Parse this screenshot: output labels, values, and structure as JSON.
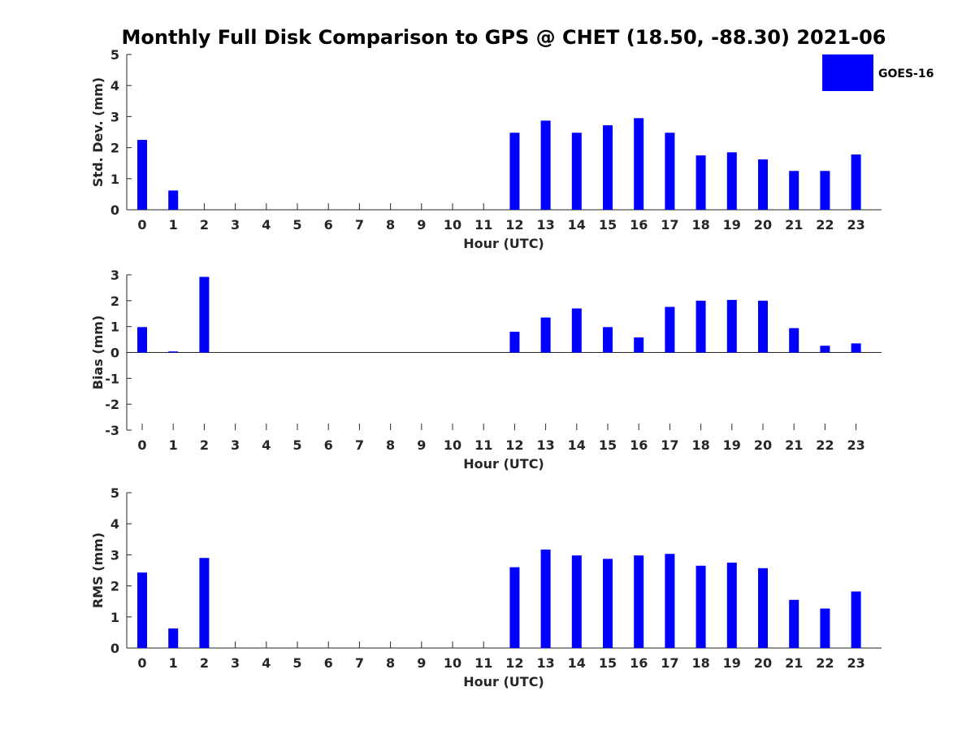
{
  "chart_data": {
    "title": "Monthly Full Disk Comparison to GPS @ CHET (18.50, -88.30) 2021-06",
    "legend": {
      "position": "top-right",
      "entries": [
        "GOES-16"
      ]
    },
    "bar_color": "#0000ff",
    "panels": [
      {
        "type": "bar",
        "xlabel": "Hour (UTC)",
        "ylabel": "Std. Dev. (mm)",
        "ylim": [
          0,
          5
        ],
        "yticks": [
          0,
          1,
          2,
          3,
          4,
          5
        ],
        "categories": [
          "0",
          "1",
          "2",
          "3",
          "4",
          "5",
          "6",
          "7",
          "8",
          "9",
          "10",
          "11",
          "12",
          "13",
          "14",
          "15",
          "16",
          "17",
          "18",
          "19",
          "20",
          "21",
          "22",
          "23"
        ],
        "series": [
          {
            "name": "GOES-16",
            "values": [
              2.25,
              0.62,
              0,
              0,
              0,
              0,
              0,
              0,
              0,
              0,
              0,
              0,
              2.48,
              2.87,
              2.48,
              2.72,
              2.95,
              2.48,
              1.75,
              1.85,
              1.62,
              1.25,
              1.25,
              1.78
            ]
          }
        ]
      },
      {
        "type": "bar",
        "xlabel": "Hour (UTC)",
        "ylabel": "Bias (mm)",
        "ylim": [
          -3,
          3
        ],
        "yticks": [
          -3,
          -2,
          -1,
          0,
          1,
          2,
          3
        ],
        "categories": [
          "0",
          "1",
          "2",
          "3",
          "4",
          "5",
          "6",
          "7",
          "8",
          "9",
          "10",
          "11",
          "12",
          "13",
          "14",
          "15",
          "16",
          "17",
          "18",
          "19",
          "20",
          "21",
          "22",
          "23"
        ],
        "series": [
          {
            "name": "GOES-16",
            "values": [
              0.98,
              0.04,
              2.92,
              0,
              0,
              0,
              0,
              0,
              0,
              0,
              0,
              0,
              0.8,
              1.35,
              1.7,
              0.98,
              0.58,
              1.76,
              2.0,
              2.03,
              2.0,
              0.94,
              0.26,
              0.35
            ]
          }
        ]
      },
      {
        "type": "bar",
        "xlabel": "Hour (UTC)",
        "ylabel": "RMS (mm)",
        "ylim": [
          0,
          5
        ],
        "yticks": [
          0,
          1,
          2,
          3,
          4,
          5
        ],
        "categories": [
          "0",
          "1",
          "2",
          "3",
          "4",
          "5",
          "6",
          "7",
          "8",
          "9",
          "10",
          "11",
          "12",
          "13",
          "14",
          "15",
          "16",
          "17",
          "18",
          "19",
          "20",
          "21",
          "22",
          "23"
        ],
        "series": [
          {
            "name": "GOES-16",
            "values": [
              2.43,
              0.63,
              2.9,
              0,
              0,
              0,
              0,
              0,
              0,
              0,
              0,
              0,
              2.6,
              3.17,
              2.98,
              2.87,
              2.98,
              3.03,
              2.65,
              2.75,
              2.57,
              1.55,
              1.27,
              1.82
            ]
          }
        ]
      }
    ]
  }
}
